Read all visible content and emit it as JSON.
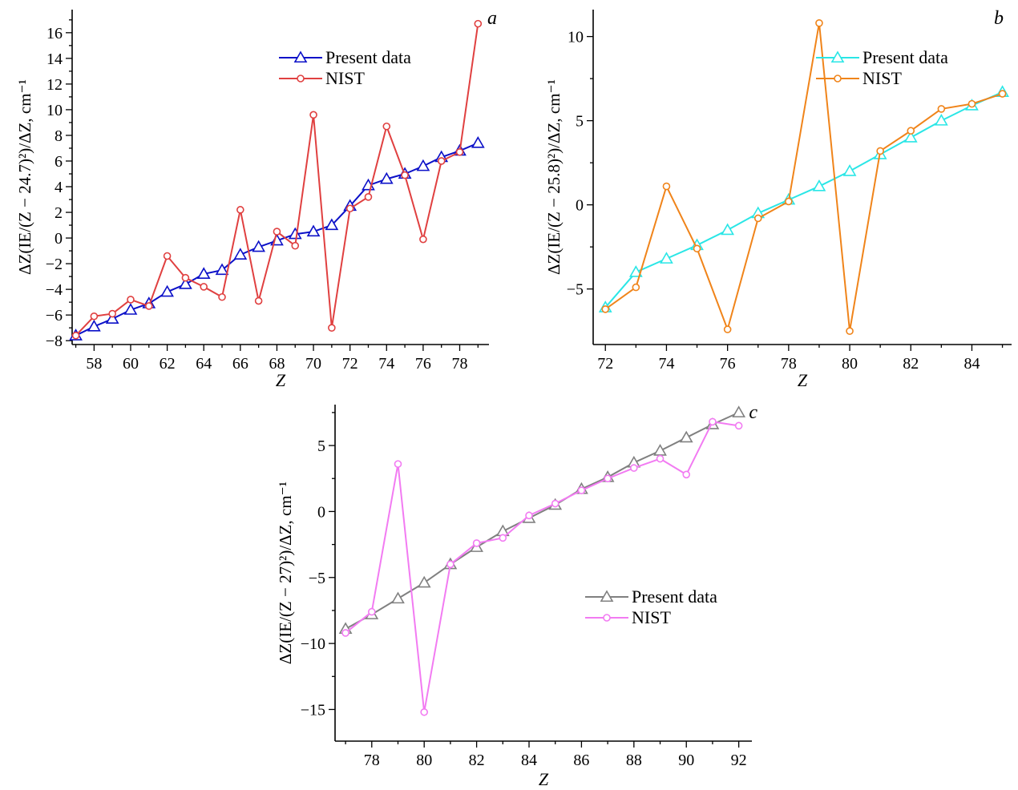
{
  "chart_data": [
    {
      "type": "line",
      "panel": "a",
      "xlabel": "Z",
      "ylabel": "ΔZ(IE/(Z − 24.7)²)/ΔZ, cm⁻¹",
      "xlim": [
        56.8,
        79.6
      ],
      "ylim": [
        -8.3,
        17.8
      ],
      "xticks": [
        58,
        60,
        62,
        64,
        66,
        68,
        70,
        72,
        74,
        76,
        78
      ],
      "yticks": [
        -8,
        -6,
        -4,
        -2,
        0,
        2,
        4,
        6,
        8,
        10,
        12,
        14,
        16
      ],
      "legend_position": "top-center",
      "series": [
        {
          "name": "Present data",
          "color": "#0b10c8",
          "marker": "triangle",
          "x": [
            57,
            58,
            59,
            60,
            61,
            62,
            63,
            64,
            65,
            66,
            67,
            68,
            69,
            70,
            71,
            72,
            73,
            74,
            75,
            76,
            77,
            78,
            79
          ],
          "y": [
            -7.6,
            -6.9,
            -6.3,
            -5.6,
            -5.1,
            -4.2,
            -3.6,
            -2.8,
            -2.5,
            -1.3,
            -0.7,
            -0.2,
            0.3,
            0.5,
            1.0,
            2.5,
            4.1,
            4.6,
            5.0,
            5.6,
            6.3,
            6.8,
            7.4
          ]
        },
        {
          "name": "NIST",
          "color": "#e04040",
          "marker": "circle",
          "x": [
            57,
            58,
            59,
            60,
            61,
            62,
            63,
            64,
            65,
            66,
            67,
            68,
            69,
            70,
            71,
            72,
            73,
            74,
            75,
            76,
            77,
            78,
            79
          ],
          "y": [
            -7.6,
            -6.1,
            -5.9,
            -4.8,
            -5.3,
            -1.4,
            -3.1,
            -3.8,
            -4.6,
            2.2,
            -4.9,
            0.5,
            -0.6,
            9.6,
            -7.0,
            2.3,
            3.2,
            8.7,
            4.9,
            -0.1,
            6.0,
            6.7,
            16.7
          ]
        }
      ]
    },
    {
      "type": "line",
      "panel": "b",
      "xlabel": "Z",
      "ylabel": "ΔZ(IE/(Z − 25.8)²)/ΔZ, cm⁻¹",
      "xlim": [
        71.6,
        85.3
      ],
      "ylim": [
        -8.3,
        11.6
      ],
      "xticks": [
        72,
        74,
        76,
        78,
        80,
        82,
        84
      ],
      "yticks": [
        -5,
        0,
        5,
        10
      ],
      "legend_position": "top-right",
      "series": [
        {
          "name": "Present data",
          "color": "#2ae6e6",
          "marker": "triangle",
          "x": [
            72,
            73,
            74,
            75,
            76,
            77,
            78,
            79,
            80,
            81,
            82,
            83,
            84,
            85
          ],
          "y": [
            -6.1,
            -4.0,
            -3.2,
            -2.4,
            -1.5,
            -0.5,
            0.3,
            1.1,
            2.0,
            3.0,
            4.0,
            5.0,
            5.9,
            6.7
          ]
        },
        {
          "name": "NIST",
          "color": "#f0841a",
          "marker": "circle",
          "x": [
            72,
            73,
            74,
            75,
            76,
            77,
            78,
            79,
            80,
            81,
            82,
            83,
            84,
            85
          ],
          "y": [
            -6.2,
            -4.9,
            1.1,
            -2.6,
            -7.4,
            -0.8,
            0.2,
            10.8,
            -7.5,
            3.2,
            4.4,
            5.7,
            6.0,
            6.6
          ]
        }
      ]
    },
    {
      "type": "line",
      "panel": "c",
      "xlabel": "Z",
      "ylabel": "ΔZ(IE/(Z − 27)²)/ΔZ, cm⁻¹",
      "xlim": [
        76.6,
        92.5
      ],
      "ylim": [
        -17.4,
        8.1
      ],
      "xticks": [
        78,
        80,
        82,
        84,
        86,
        88,
        90,
        92
      ],
      "yticks": [
        -15,
        -10,
        -5,
        0,
        5
      ],
      "legend_position": "center-right",
      "series": [
        {
          "name": "Present data",
          "color": "#808080",
          "marker": "triangle",
          "x": [
            77,
            78,
            79,
            80,
            81,
            82,
            83,
            84,
            85,
            86,
            87,
            88,
            89,
            90,
            91,
            92
          ],
          "y": [
            -8.9,
            -7.8,
            -6.6,
            -5.4,
            -4.0,
            -2.7,
            -1.5,
            -0.5,
            0.5,
            1.7,
            2.6,
            3.7,
            4.6,
            5.6,
            6.6,
            7.5
          ]
        },
        {
          "name": "NIST",
          "color": "#f27bf2",
          "marker": "circle",
          "x": [
            77,
            78,
            79,
            80,
            81,
            82,
            83,
            84,
            85,
            86,
            87,
            88,
            89,
            90,
            91,
            92
          ],
          "y": [
            -9.2,
            -7.6,
            3.6,
            -15.2,
            -4.0,
            -2.4,
            -2.0,
            -0.3,
            0.6,
            1.6,
            2.5,
            3.3,
            4.0,
            2.8,
            6.8,
            6.5
          ]
        }
      ]
    }
  ]
}
